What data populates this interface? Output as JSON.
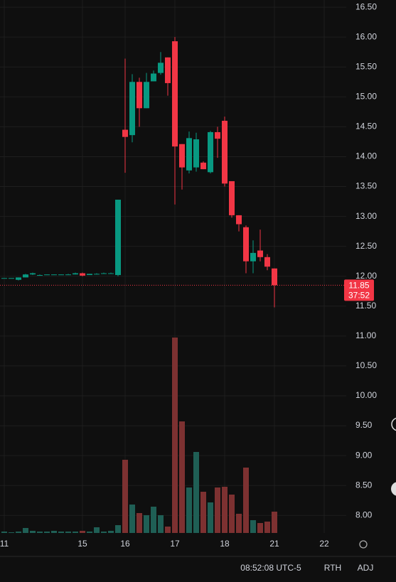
{
  "chart_data": {
    "type": "candlestick",
    "x": [
      0.6,
      1.6,
      2.6,
      3.6,
      4.6,
      5.6,
      6.6,
      7.6,
      8.6,
      9.6,
      10.6,
      11.6,
      12.6,
      13.6,
      14.6,
      15.6,
      16.6,
      17.6,
      18.6,
      19.6,
      20.6,
      21.6,
      22.6,
      23.6,
      24.6,
      25.6,
      26.6,
      27.6,
      28.6,
      29.6,
      30.6,
      31.6,
      32.6,
      33.6,
      34.6,
      35.6,
      36.6,
      37.6,
      38.6
    ],
    "open": [
      11.97,
      11.97,
      11.94,
      11.98,
      12.03,
      12.02,
      12.02,
      12.02,
      12.02,
      12.03,
      12.03,
      12.05,
      12.02,
      12.04,
      12.04,
      12.05,
      12.02,
      14.45,
      14.36,
      15.25,
      14.81,
      15.26,
      15.4,
      15.66,
      15.93,
      14.21,
      13.77,
      13.82,
      13.9,
      13.74,
      14.41,
      14.6,
      13.59,
      13.02,
      12.82,
      12.25,
      12.43,
      12.32,
      12.13
    ],
    "high": [
      11.97,
      11.97,
      11.98,
      12.04,
      12.06,
      12.03,
      12.03,
      12.03,
      12.03,
      12.04,
      12.06,
      12.06,
      12.04,
      12.05,
      12.06,
      12.06,
      13.28,
      15.64,
      15.38,
      15.32,
      15.4,
      15.44,
      15.75,
      15.66,
      16.0,
      14.21,
      14.42,
      14.4,
      13.92,
      14.43,
      14.5,
      14.67,
      13.59,
      13.02,
      12.85,
      12.6,
      12.78,
      12.37,
      12.13
    ],
    "low": [
      11.97,
      11.97,
      11.93,
      11.98,
      12.02,
      12.01,
      12.02,
      12.02,
      12.02,
      12.03,
      12.03,
      12.0,
      12.02,
      12.03,
      12.04,
      12.04,
      12.0,
      13.73,
      14.24,
      14.5,
      14.81,
      15.26,
      15.37,
      15.02,
      13.2,
      13.45,
      13.72,
      13.75,
      13.79,
      13.72,
      13.98,
      13.5,
      12.98,
      12.75,
      12.05,
      12.05,
      12.25,
      12.1,
      11.48
    ],
    "close": [
      11.97,
      11.97,
      11.98,
      12.03,
      12.05,
      12.02,
      12.03,
      12.03,
      12.03,
      12.03,
      12.05,
      12.01,
      12.04,
      12.04,
      12.05,
      12.05,
      13.28,
      14.33,
      15.25,
      14.81,
      15.25,
      15.39,
      15.57,
      15.23,
      14.17,
      13.82,
      14.31,
      14.29,
      13.79,
      14.41,
      14.3,
      13.55,
      13.02,
      12.87,
      12.25,
      12.39,
      12.32,
      12.16,
      11.85
    ],
    "volume": [
      2,
      1,
      2,
      7,
      3,
      2,
      2,
      3,
      2,
      2,
      2,
      3,
      2,
      8,
      2,
      3,
      11,
      103,
      40,
      28,
      25,
      37,
      25,
      9,
      275,
      157,
      64,
      114,
      58,
      43,
      64,
      65,
      54,
      27,
      92,
      18,
      14,
      16,
      30
    ],
    "volume_lim": [
      0,
      300
    ],
    "up_color": "#089981",
    "down_color": "#f23645",
    "up_volume_color": "#1f5f55",
    "down_volume_color": "#7d3131",
    "xlim": [
      0,
      48.7
    ],
    "ylim": [
      7.73,
      16.62
    ],
    "xticks": [
      {
        "value": 0.6,
        "label": "11"
      },
      {
        "value": 11.6,
        "label": "15"
      },
      {
        "value": 17.6,
        "label": "16"
      },
      {
        "value": 24.6,
        "label": "17"
      },
      {
        "value": 31.6,
        "label": "18"
      },
      {
        "value": 38.6,
        "label": "21"
      },
      {
        "value": 45.6,
        "label": "22"
      }
    ],
    "yticks": [
      {
        "value": 16.5,
        "label": "16.50"
      },
      {
        "value": 16,
        "label": "16.00"
      },
      {
        "value": 15.5,
        "label": "15.50"
      },
      {
        "value": 15,
        "label": "15.00"
      },
      {
        "value": 14.5,
        "label": "14.50"
      },
      {
        "value": 14,
        "label": "14.00"
      },
      {
        "value": 13.5,
        "label": "13.50"
      },
      {
        "value": 13,
        "label": "13.00"
      },
      {
        "value": 12.5,
        "label": "12.50"
      },
      {
        "value": 12,
        "label": "12.00"
      },
      {
        "value": 11.5,
        "label": "11.50"
      },
      {
        "value": 11,
        "label": "11.00"
      },
      {
        "value": 10.5,
        "label": "10.50"
      },
      {
        "value": 10,
        "label": "10.00"
      },
      {
        "value": 9.5,
        "label": "9.50"
      },
      {
        "value": 9,
        "label": "9.00"
      },
      {
        "value": 8.5,
        "label": "8.50"
      },
      {
        "value": 8,
        "label": "8.00"
      }
    ],
    "grid": true,
    "countdown": "37:52"
  },
  "status_bar": {
    "time": "08:52:08 UTC-5",
    "session": "RTH",
    "adjust": "ADJ"
  }
}
